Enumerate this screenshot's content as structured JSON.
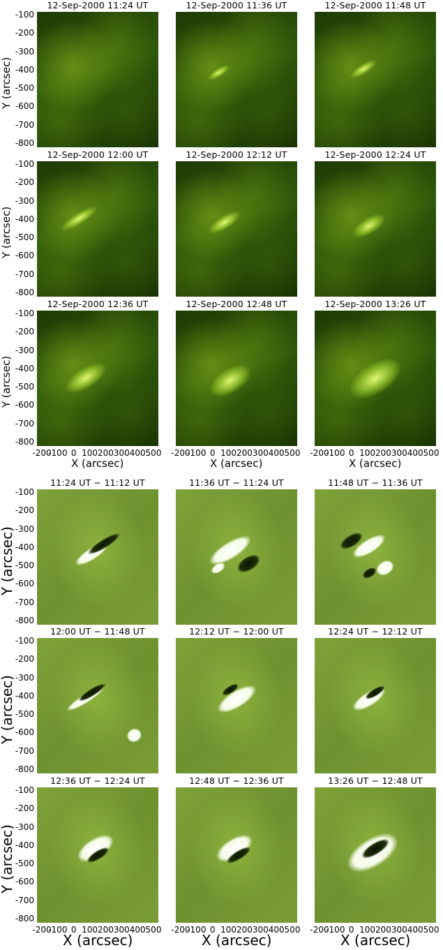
{
  "intensity_titles": [
    "12-Sep-2000  11:24  UT",
    "12-Sep-2000  11:36  UT",
    "12-Sep-2000  11:48  UT",
    "12-Sep-2000  12:00  UT",
    "12-Sep-2000  12:12  UT",
    "12-Sep-2000  12:24  UT",
    "12-Sep-2000  12:36  UT",
    "12-Sep-2000  12:48  UT",
    "12-Sep-2000  13:26  UT"
  ],
  "difference_titles": [
    "11:24 UT − 11:12 UT",
    "11:36 UT − 11:24 UT",
    "11:48 UT − 11:36 UT",
    "12:00 UT − 11:48 UT",
    "12:12 UT − 12:00 UT",
    "12:24 UT − 12:12 UT",
    "12:36 UT − 12:24 UT",
    "12:48 UT − 12:36 UT",
    "13:26 UT − 12:48 UT"
  ],
  "y_tick_labels": [
    "-100",
    "-200",
    "-300",
    "-400",
    "-500",
    "-600",
    "-700",
    "-800"
  ],
  "x_tick_labels": [
    "-200",
    "-100",
    "0",
    "100",
    "200",
    "300",
    "400",
    "500"
  ],
  "y_axis_label": "Y (arcsec)",
  "x_axis_label": "X (arcsec)",
  "colors": {
    "intensity_dark": "#173003",
    "intensity_bright": "#e6ff78",
    "difference_base": "#7fa23a",
    "difference_white": "#ffffff",
    "difference_black": "#0b1402"
  }
}
